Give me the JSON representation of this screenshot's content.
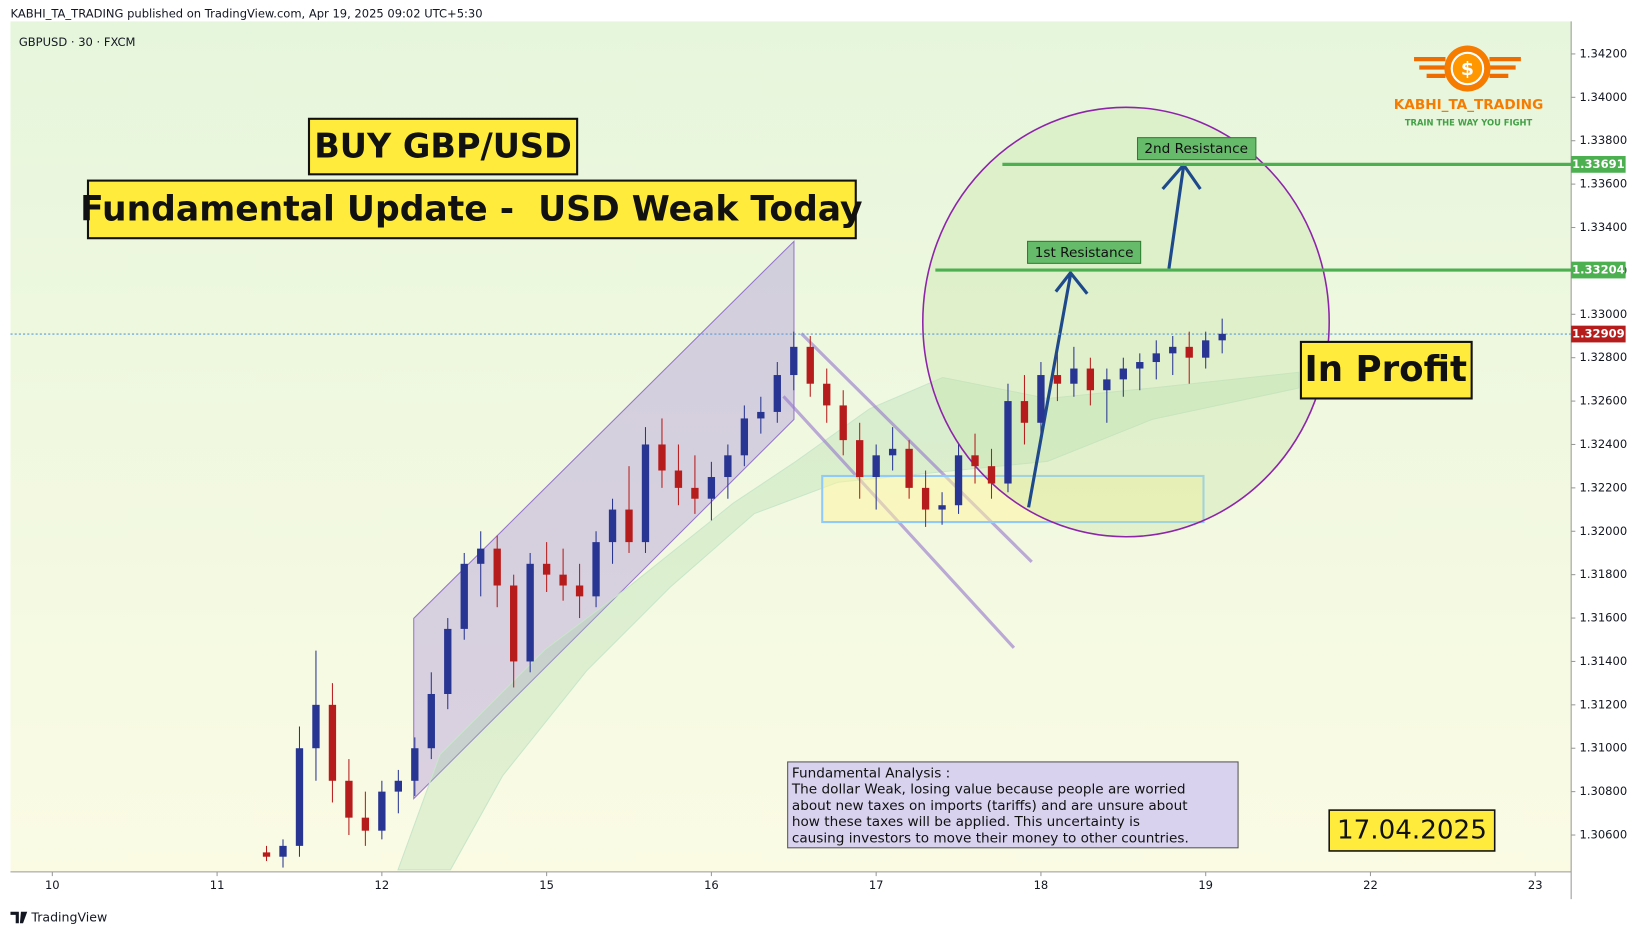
{
  "header": "KABHI_TA_TRADING published on TradingView.com, Apr 19, 2025 09:02 UTC+5:30",
  "footer": "TradingView",
  "logo": {
    "symbol": "$",
    "name": "KABHI_TA_TRADING",
    "slogan": "TRAIN THE WAY YOU FIGHT"
  },
  "chart_data": {
    "type": "candlestick",
    "symbol": "GBPUSD · 30 · FXCM",
    "up_color": "#283593",
    "down_color": "#b71c1c",
    "xlim": [
      -0.254,
      9.218
    ],
    "xticks": [
      {
        "value": 0,
        "label": "10"
      },
      {
        "value": 1,
        "label": "11"
      },
      {
        "value": 2,
        "label": "12"
      },
      {
        "value": 3,
        "label": "15"
      },
      {
        "value": 4,
        "label": "16"
      },
      {
        "value": 5,
        "label": "17"
      },
      {
        "value": 6,
        "label": "18"
      },
      {
        "value": 7,
        "label": "19"
      },
      {
        "value": 8,
        "label": "22"
      },
      {
        "value": 9,
        "label": "23"
      }
    ],
    "ylim": [
      1.3043,
      1.3435
    ],
    "yticks": [
      {
        "value": 1.306,
        "label": "1.30600"
      },
      {
        "value": 1.308,
        "label": "1.30800"
      },
      {
        "value": 1.31,
        "label": "1.31000"
      },
      {
        "value": 1.312,
        "label": "1.31200"
      },
      {
        "value": 1.314,
        "label": "1.31400"
      },
      {
        "value": 1.316,
        "label": "1.31600"
      },
      {
        "value": 1.318,
        "label": "1.31800"
      },
      {
        "value": 1.32,
        "label": "1.32000"
      },
      {
        "value": 1.322,
        "label": "1.32200"
      },
      {
        "value": 1.324,
        "label": "1.32400"
      },
      {
        "value": 1.326,
        "label": "1.32600"
      },
      {
        "value": 1.328,
        "label": "1.32800"
      },
      {
        "value": 1.33,
        "label": "1.33000"
      },
      {
        "value": 1.332,
        "label": "1.33200"
      },
      {
        "value": 1.334,
        "label": "1.33400"
      },
      {
        "value": 1.336,
        "label": "1.33600"
      },
      {
        "value": 1.338,
        "label": "1.33800"
      },
      {
        "value": 1.34,
        "label": "1.34000"
      },
      {
        "value": 1.342,
        "label": "1.34200"
      }
    ],
    "price_lines": [
      {
        "value": 1.33691,
        "color": "#4caf50"
      },
      {
        "value": 1.33204,
        "color": "#4caf50"
      },
      {
        "value": 1.32909,
        "color": "#5b9bd5",
        "label_color": "#b71c1c"
      }
    ],
    "x": [
      1.3,
      1.4,
      1.5,
      1.6,
      1.7,
      1.8,
      1.9,
      2.0,
      2.1,
      2.2,
      2.3,
      2.4,
      2.5,
      2.6,
      2.7,
      2.8,
      2.9,
      3.0,
      3.1,
      3.2,
      3.3,
      3.4,
      3.5,
      3.6,
      3.7,
      3.8,
      3.9,
      4.0,
      4.1,
      4.2,
      4.3,
      4.4,
      4.5,
      4.6,
      4.7,
      4.8,
      4.9,
      5.0,
      5.1,
      5.2,
      5.3,
      5.4,
      5.5,
      5.6,
      5.7,
      5.8,
      5.9,
      6.0,
      6.1,
      6.2,
      6.3,
      6.4,
      6.5,
      6.6,
      6.7,
      6.8,
      6.9,
      7.0,
      7.1
    ],
    "open": [
      1.3052,
      1.305,
      1.3055,
      1.31,
      1.312,
      1.3085,
      1.3068,
      1.3062,
      1.308,
      1.3085,
      1.31,
      1.3125,
      1.3155,
      1.3185,
      1.3192,
      1.3175,
      1.314,
      1.3185,
      1.318,
      1.3175,
      1.317,
      1.3195,
      1.321,
      1.3195,
      1.324,
      1.3228,
      1.322,
      1.3215,
      1.3225,
      1.3235,
      1.3252,
      1.3255,
      1.3272,
      1.3285,
      1.3268,
      1.3258,
      1.3242,
      1.3225,
      1.3235,
      1.3238,
      1.322,
      1.321,
      1.3212,
      1.3235,
      1.323,
      1.3222,
      1.326,
      1.325,
      1.3272,
      1.3268,
      1.3275,
      1.3265,
      1.327,
      1.3275,
      1.3278,
      1.3282,
      1.3285,
      1.328,
      1.3288
    ],
    "high": [
      1.3055,
      1.3058,
      1.311,
      1.3145,
      1.313,
      1.3095,
      1.308,
      1.3085,
      1.309,
      1.3105,
      1.3135,
      1.316,
      1.319,
      1.32,
      1.3198,
      1.318,
      1.319,
      1.3195,
      1.3192,
      1.3185,
      1.32,
      1.3215,
      1.323,
      1.3248,
      1.3252,
      1.324,
      1.3235,
      1.3232,
      1.324,
      1.3258,
      1.3262,
      1.3278,
      1.3292,
      1.329,
      1.3275,
      1.3265,
      1.325,
      1.324,
      1.3248,
      1.3242,
      1.3228,
      1.3218,
      1.324,
      1.3245,
      1.3238,
      1.3268,
      1.3272,
      1.3278,
      1.3282,
      1.3285,
      1.328,
      1.3275,
      1.328,
      1.3282,
      1.3288,
      1.329,
      1.3292,
      1.3292,
      1.3298
    ],
    "low": [
      1.3048,
      1.3045,
      1.305,
      1.3085,
      1.3075,
      1.306,
      1.3055,
      1.3058,
      1.307,
      1.3078,
      1.3095,
      1.3118,
      1.315,
      1.317,
      1.3165,
      1.3128,
      1.3135,
      1.3172,
      1.3168,
      1.316,
      1.3165,
      1.3185,
      1.319,
      1.319,
      1.322,
      1.3212,
      1.3208,
      1.3205,
      1.3215,
      1.323,
      1.3245,
      1.325,
      1.3265,
      1.3262,
      1.325,
      1.3235,
      1.3215,
      1.321,
      1.3228,
      1.3215,
      1.3202,
      1.3203,
      1.3208,
      1.3222,
      1.3215,
      1.3218,
      1.324,
      1.3245,
      1.326,
      1.3262,
      1.3258,
      1.325,
      1.3262,
      1.3265,
      1.327,
      1.3272,
      1.3268,
      1.3275,
      1.3282
    ],
    "close": [
      1.305,
      1.3055,
      1.31,
      1.312,
      1.3085,
      1.3068,
      1.3062,
      1.308,
      1.3085,
      1.31,
      1.3125,
      1.3155,
      1.3185,
      1.3192,
      1.3175,
      1.314,
      1.3185,
      1.318,
      1.3175,
      1.317,
      1.3195,
      1.321,
      1.3195,
      1.324,
      1.3228,
      1.322,
      1.3215,
      1.3225,
      1.3235,
      1.3252,
      1.3255,
      1.3272,
      1.3285,
      1.3268,
      1.3258,
      1.3242,
      1.3225,
      1.3235,
      1.3238,
      1.322,
      1.321,
      1.3212,
      1.3235,
      1.323,
      1.3222,
      1.326,
      1.325,
      1.3272,
      1.3268,
      1.3275,
      1.3265,
      1.327,
      1.3275,
      1.3278,
      1.3282,
      1.3285,
      1.328,
      1.3288,
      1.3291
    ],
    "annotations": {
      "buy": "BUY GBP/USD",
      "update": "Fundamental Update -  USD Weak Today",
      "first_resistance": "1st Resistance",
      "second_resistance": "2nd Resistance",
      "in_profit": "In Profit",
      "date": "17.04.2025",
      "analysis": [
        "Fundamental Analysis :",
        "The dollar Weak, losing value because people are worried",
        "about new taxes on imports (tariffs) and are unsure about",
        "how these taxes will be applied. This uncertainty is",
        "causing investors to move their money to other countries."
      ]
    }
  }
}
